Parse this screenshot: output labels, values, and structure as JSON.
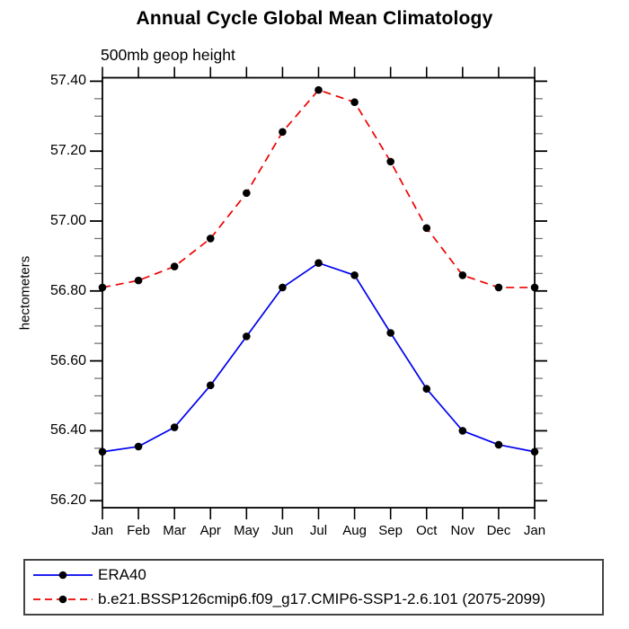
{
  "title": "Annual Cycle Global Mean Climatology",
  "subtitle": "500mb geop height",
  "chart_data": {
    "type": "line",
    "x_categories": [
      "Jan",
      "Feb",
      "Mar",
      "Apr",
      "May",
      "Jun",
      "Jul",
      "Aug",
      "Sep",
      "Oct",
      "Nov",
      "Dec",
      "Jan"
    ],
    "series": [
      {
        "name": "ERA40",
        "color": "#0000ee",
        "line_style": "solid",
        "marker": "filled-circle",
        "values": [
          56.34,
          56.355,
          56.41,
          56.53,
          56.67,
          56.81,
          56.88,
          56.845,
          56.68,
          56.52,
          56.4,
          56.36,
          56.34
        ]
      },
      {
        "name": "b.e21.BSSP126cmip6.f09_g17.CMIP6-SSP1-2.6.101 (2075-2099)",
        "color": "#ee0000",
        "line_style": "dashed",
        "marker": "filled-circle",
        "values": [
          56.81,
          56.83,
          56.87,
          56.95,
          57.08,
          57.255,
          57.375,
          57.34,
          57.17,
          56.98,
          56.845,
          56.81,
          56.81
        ]
      }
    ],
    "ylabel": "hectometers",
    "xlabel": "",
    "ylim": [
      56.18,
      57.41
    ],
    "yticks_major": [
      "56.20",
      "56.40",
      "56.60",
      "56.80",
      "57.00",
      "57.20",
      "57.40"
    ],
    "ytick_minor_step": 0.05,
    "marker_color": "#000000",
    "grid": false,
    "legend_position": "bottom",
    "frame": "box-with-outward-ticks"
  }
}
